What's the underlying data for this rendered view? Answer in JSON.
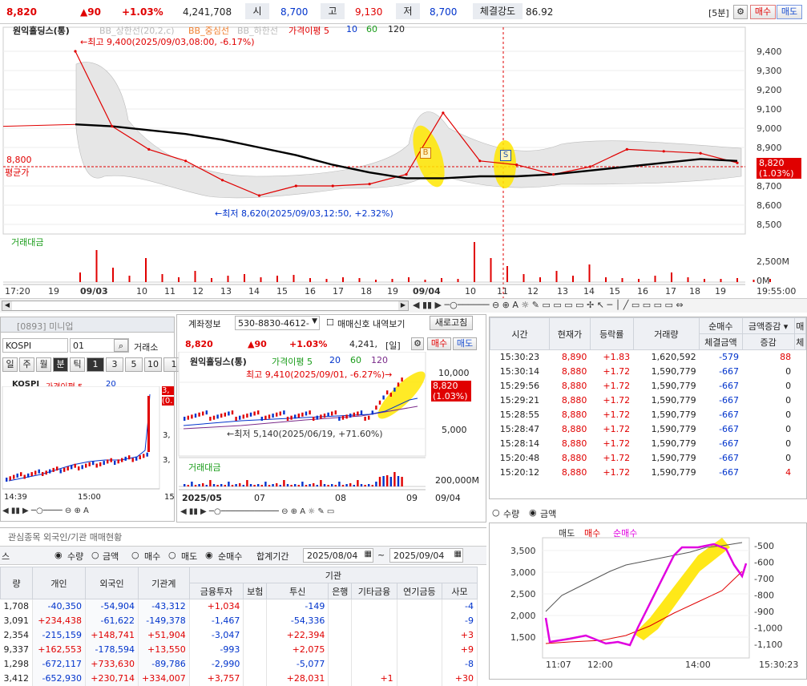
{
  "top": {
    "price": "8,820",
    "change": "▲90",
    "pct": "+1.03%",
    "volume": "4,241,708",
    "open_label": "시",
    "open": "8,700",
    "high_label": "고",
    "high": "9,130",
    "low_label": "저",
    "low": "8,700",
    "strength_label": "체결강도",
    "strength": "86.92",
    "period": "[5분]",
    "buy": "매수",
    "sell": "매도"
  },
  "main": {
    "title": "원익홀딩스(통)",
    "bb_upper": "BB_상한선(20,2,c)",
    "bb_mid": "BB_중심선",
    "bb_lower": "BB_하한선",
    "ma_label": "가격이평 5",
    "ma10": "10",
    "ma60": "60",
    "ma120": "120",
    "high_note": "←최고 9,400(2025/09/03,08:00, -6.17%)",
    "low_note": "←최저 8,620(2025/09/03,12:50, +2.32%)",
    "avg_price": "8,800",
    "avg_label": "평균가",
    "price_tag": "8,820",
    "price_tag_pct": "(1.03%)",
    "yticks": [
      "9,400",
      "9,300",
      "9,200",
      "9,100",
      "9,000",
      "8,900",
      "8,800",
      "8,700",
      "8,600",
      "8,500"
    ],
    "vol_label": "거래대금",
    "vol_ticks": [
      "2,500M",
      "0M"
    ],
    "xticks": [
      "17:20",
      "19",
      "09/03",
      "10",
      "11",
      "12",
      "13",
      "14",
      "15",
      "16",
      "17",
      "18",
      "19",
      "09/04",
      "10",
      "11",
      "12",
      "13",
      "14",
      "15",
      "16",
      "17",
      "18",
      "19",
      "19:55:00"
    ],
    "marker_b": "B",
    "marker_s": "S"
  },
  "chart_data": {
    "type": "line",
    "title": "원익홀딩스(통)",
    "x": [
      "09/03 08:00",
      "09/03 09:00",
      "09/03 10:00",
      "09/03 11:00",
      "09/03 12:00",
      "09/03 12:50",
      "09/03 14:00",
      "09/03 16:00",
      "09/03 18:00",
      "09/04 08:00",
      "09/04 09:00",
      "09/04 10:00",
      "09/04 11:00",
      "09/04 12:00",
      "09/04 13:00",
      "09/04 14:00",
      "09/04 16:00",
      "09/04 18:00",
      "09/04 19:55"
    ],
    "series": [
      {
        "name": "가격이평 5",
        "values": [
          9400,
          9010,
          8890,
          8830,
          8730,
          8650,
          8700,
          8700,
          8710,
          8760,
          9080,
          8830,
          8810,
          8760,
          8800,
          8890,
          8880,
          8870,
          8820
        ]
      },
      {
        "name": "120",
        "values": [
          9020,
          9010,
          8990,
          8970,
          8940,
          8900,
          8860,
          8810,
          8770,
          8740,
          8740,
          8750,
          8750,
          8760,
          8780,
          8800,
          8820,
          8840,
          8830
        ]
      }
    ],
    "ylim": [
      8450,
      9500
    ],
    "high": {
      "value": 9400,
      "label": "최고 9,400(2025/09/03,08:00, -6.17%)"
    },
    "low": {
      "value": 8620,
      "label": "최저 8,620(2025/09/03,12:50, +2.32%)"
    }
  },
  "left": {
    "code": "[0893] 미니업",
    "index_input": "KOSPI",
    "index_code": "01",
    "exchange": "거래소",
    "periods": [
      "일",
      "주",
      "월",
      "분",
      "틱",
      "1",
      "3",
      "5",
      "10",
      "1"
    ],
    "title": "KOSPI",
    "ma": "가격이평 5",
    "ma2": "20",
    "tag1": "3,",
    "tag2": "(0.",
    "y1": "3,",
    "y2": "3,",
    "x1": "14:39",
    "x2": "15:00",
    "x3": "15"
  },
  "mid": {
    "account_label": "계좌정보",
    "account": "530-8830-4612-",
    "signal_label": "매매신호 내역보기",
    "refresh": "새로고침",
    "title": "원익홀딩스(통)",
    "price": "8,820",
    "change": "▲90",
    "pct": "+1.03%",
    "vol": "4,241,",
    "period": "[일]",
    "buy": "매수",
    "sell": "매도",
    "ma": "가격이평 5",
    "ma20": "20",
    "ma60": "60",
    "ma120": "120",
    "high_note": "최고 9,410(2025/09/01, -6.27%)→",
    "low_note": "←최저 5,140(2025/06/19, +71.60%)",
    "yticks": [
      "10,000",
      "5,000"
    ],
    "tag": "8,820",
    "tag_pct": "(1.03%)",
    "vol_label": "거래대금",
    "vol_tick": "200,000M",
    "xticks": [
      "2025/05",
      "07",
      "08",
      "09",
      "09/04"
    ]
  },
  "right": {
    "headers": [
      "시간",
      "현재가",
      "등락률",
      "거래량",
      "순매수",
      "금액증감",
      "체결금액",
      "증감",
      "매",
      "체"
    ],
    "rows": [
      [
        "15:30:23",
        "8,890",
        "+1.83",
        "1,620,592",
        "-579",
        "88"
      ],
      [
        "15:30:14",
        "8,880",
        "+1.72",
        "1,590,779",
        "-667",
        "0"
      ],
      [
        "15:29:56",
        "8,880",
        "+1.72",
        "1,590,779",
        "-667",
        "0"
      ],
      [
        "15:29:21",
        "8,880",
        "+1.72",
        "1,590,779",
        "-667",
        "0"
      ],
      [
        "15:28:55",
        "8,880",
        "+1.72",
        "1,590,779",
        "-667",
        "0"
      ],
      [
        "15:28:47",
        "8,880",
        "+1.72",
        "1,590,779",
        "-667",
        "0"
      ],
      [
        "15:28:14",
        "8,880",
        "+1.72",
        "1,590,779",
        "-667",
        "0"
      ],
      [
        "15:20:48",
        "8,880",
        "+1.72",
        "1,590,779",
        "-667",
        "0"
      ],
      [
        "15:20:12",
        "8,880",
        "+1.72",
        "1,590,779",
        "-667",
        "4"
      ]
    ],
    "radio1": "수량",
    "radio2": "금액",
    "legend_sell": "매도",
    "legend_buy": "매수",
    "legend_net": "순매수",
    "yl": [
      "3,500",
      "3,000",
      "2,500",
      "2,000",
      "1,500"
    ],
    "yr": [
      "-500",
      "-600",
      "-700",
      "-800",
      "-900",
      "-1,000",
      "-1,100"
    ],
    "xt": [
      "11:07",
      "12:00",
      "14:00",
      "15:30:23"
    ]
  },
  "bottom": {
    "tab1": "관심종목 외국인/기관 매매현황",
    "prefix": "스",
    "r_qty": "수량",
    "r_amt": "금액",
    "r_buy": "매수",
    "r_sell": "매도",
    "r_net": "순매수",
    "period_label": "합계기간",
    "from": "2025/08/04",
    "to": "2025/09/04",
    "tilde": "~",
    "h_inst": "기관",
    "headers": [
      "량",
      "개인",
      "외국인",
      "기관계",
      "금융투자",
      "보험",
      "투신",
      "은행",
      "기타금융",
      "연기금등",
      "사모"
    ],
    "rows": [
      [
        "1,708",
        "-40,350",
        "-54,904",
        "-43,312",
        "+1,034",
        "",
        "-149",
        "",
        "",
        "",
        "-4"
      ],
      [
        "3,091",
        "+234,438",
        "-61,622",
        "-149,378",
        "-1,467",
        "",
        "-54,336",
        "",
        "",
        "",
        "-9"
      ],
      [
        "2,354",
        "-215,159",
        "+148,741",
        "+51,904",
        "-3,047",
        "",
        "+22,394",
        "",
        "",
        "",
        "+3"
      ],
      [
        "9,337",
        "+162,553",
        "-178,594",
        "+13,550",
        "-993",
        "",
        "+2,075",
        "",
        "",
        "",
        "+9"
      ],
      [
        "1,298",
        "-672,117",
        "+733,630",
        "-89,786",
        "-2,990",
        "",
        "-5,077",
        "",
        "",
        "",
        "-8"
      ],
      [
        "3,412",
        "-652,930",
        "+230,714",
        "+334,007",
        "+3,757",
        "",
        "+28,031",
        "",
        "+1",
        "",
        "+30"
      ]
    ]
  }
}
